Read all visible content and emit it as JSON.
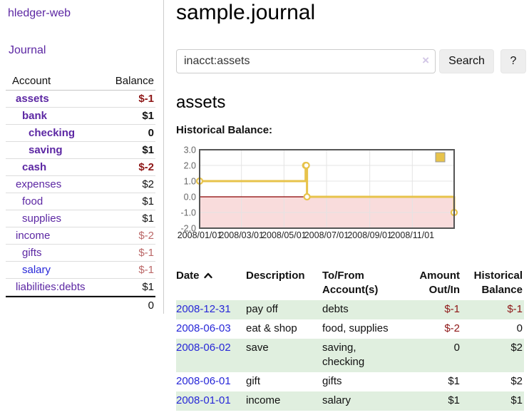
{
  "app": {
    "brand": "hledger-web",
    "nav_journal": "Journal"
  },
  "sidebar": {
    "headers": {
      "account": "Account",
      "balance": "Balance"
    },
    "accounts": [
      {
        "name": "assets",
        "balance": "$-1"
      },
      {
        "name": "bank",
        "balance": "$1"
      },
      {
        "name": "checking",
        "balance": "0"
      },
      {
        "name": "saving",
        "balance": "$1"
      },
      {
        "name": "cash",
        "balance": "$-2"
      },
      {
        "name": "expenses",
        "balance": "$2"
      },
      {
        "name": "food",
        "balance": "$1"
      },
      {
        "name": "supplies",
        "balance": "$1"
      },
      {
        "name": "income",
        "balance": "$-2"
      },
      {
        "name": "gifts",
        "balance": "$-1"
      },
      {
        "name": "salary",
        "balance": "$-1"
      },
      {
        "name": "liabilities:debts",
        "balance": "$1"
      }
    ],
    "total": "0"
  },
  "header": {
    "title": "sample.journal"
  },
  "search": {
    "value": "inacct:assets",
    "clear_icon": "×",
    "button_label": "Search",
    "help_label": "?"
  },
  "account_page": {
    "heading": "assets",
    "section_label": "Historical Balance:"
  },
  "chart_data": {
    "type": "line",
    "step": true,
    "title": "Historical Balance",
    "series": [
      {
        "name": "$",
        "color": "#e7c34b",
        "x": [
          "2008-01-01",
          "2008-06-01",
          "2008-06-02",
          "2008-06-03",
          "2008-12-31"
        ],
        "y": [
          1,
          2,
          2,
          0,
          -1
        ]
      }
    ],
    "ylim": [
      -2,
      3
    ],
    "ytick_values": [
      3,
      2,
      1,
      0,
      -1,
      -2
    ],
    "ytick_labels": [
      "3.0",
      "2.0",
      "1.0",
      "0.0",
      "-1.0",
      "-2.0"
    ],
    "xtick_labels": [
      "2008/01/01",
      "2008/03/01",
      "2008/05/01",
      "2008/07/01",
      "2008/09/01",
      "2008/11/01"
    ],
    "legend": "$",
    "legend_position": "top-right",
    "grid": true,
    "negative_region_color": "#f9dcdc",
    "zero_line_color": "#8b0000"
  },
  "register": {
    "headers": {
      "date": "Date",
      "description": "Description",
      "accounts": "To/From Account(s)",
      "amount": "Amount Out/In",
      "balance": "Historical Balance"
    },
    "rows": [
      {
        "date": "2008-12-31",
        "description": "pay off",
        "accounts": "debts",
        "amount": "$-1",
        "balance": "$-1"
      },
      {
        "date": "2008-06-03",
        "description": "eat & shop",
        "accounts": "food, supplies",
        "amount": "$-2",
        "balance": "0"
      },
      {
        "date": "2008-06-02",
        "description": "save",
        "accounts": "saving, checking",
        "amount": "0",
        "balance": "$2"
      },
      {
        "date": "2008-06-01",
        "description": "gift",
        "accounts": "gifts",
        "amount": "$1",
        "balance": "$2"
      },
      {
        "date": "2008-01-01",
        "description": "income",
        "accounts": "salary",
        "amount": "$1",
        "balance": "$1"
      }
    ]
  }
}
